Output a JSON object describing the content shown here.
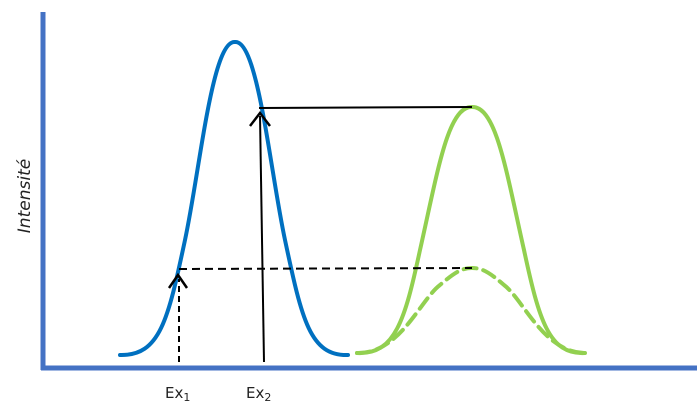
{
  "axes": {
    "y_label": "Intensité",
    "color": "#4472C4"
  },
  "x_ticks": [
    {
      "base": "Ex",
      "sub": "1"
    },
    {
      "base": "Ex",
      "sub": "2"
    }
  ],
  "colors": {
    "excitation_curve": "#0070C0",
    "emission_curve": "#92D050",
    "guide_lines": "#000000"
  }
}
